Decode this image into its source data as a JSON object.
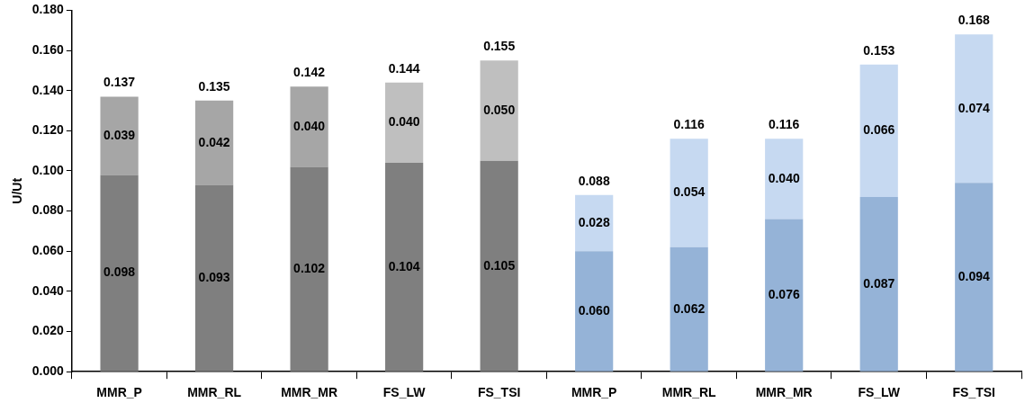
{
  "chart_data": {
    "type": "bar",
    "stacked": true,
    "ylabel": "U/Ut",
    "categories": [
      "MMR_P",
      "MMR_RL",
      "MMR_MR",
      "FS_LW",
      "FS_TSI",
      "MMR_P",
      "MMR_RL",
      "MMR_MR",
      "FS_LW",
      "FS_TSI"
    ],
    "series": [
      {
        "colors": [
          "#7f7f7f",
          "#7f7f7f",
          "#7f7f7f",
          "#7f7f7f",
          "#7f7f7f",
          "#95b3d7",
          "#95b3d7",
          "#95b3d7",
          "#95b3d7",
          "#95b3d7"
        ],
        "values": [
          0.098,
          0.093,
          0.102,
          0.104,
          0.105,
          0.06,
          0.062,
          0.076,
          0.087,
          0.094
        ],
        "value_labels": [
          "0.098",
          "0.093",
          "0.102",
          "0.104",
          "0.105",
          "0.060",
          "0.062",
          "0.076",
          "0.087",
          "0.094"
        ]
      },
      {
        "colors": [
          "#a6a6a6",
          "#a6a6a6",
          "#a6a6a6",
          "#bfbfbf",
          "#bfbfbf",
          "#c6d9f1",
          "#c6d9f1",
          "#c6d9f1",
          "#c6d9f1",
          "#c6d9f1"
        ],
        "values": [
          0.039,
          0.042,
          0.04,
          0.04,
          0.05,
          0.028,
          0.054,
          0.04,
          0.066,
          0.074
        ],
        "value_labels": [
          "0.039",
          "0.042",
          "0.040",
          "0.040",
          "0.050",
          "0.028",
          "0.054",
          "0.040",
          "0.066",
          "0.074"
        ]
      }
    ],
    "totals": [
      "0.137",
      "0.135",
      "0.142",
      "0.144",
      "0.155",
      "0.088",
      "0.116",
      "0.116",
      "0.153",
      "0.168"
    ],
    "ylim": [
      0,
      0.18
    ],
    "yticks": [
      {
        "value": 0,
        "label": "0.000"
      },
      {
        "value": 0.02,
        "label": "0.020"
      },
      {
        "value": 0.04,
        "label": "0.040"
      },
      {
        "value": 0.06,
        "label": "0.060"
      },
      {
        "value": 0.08,
        "label": "0.080"
      },
      {
        "value": 0.1,
        "label": "0.100"
      },
      {
        "value": 0.12,
        "label": "0.120"
      },
      {
        "value": 0.14,
        "label": "0.140"
      },
      {
        "value": 0.16,
        "label": "0.160"
      },
      {
        "value": 0.18,
        "label": "0.180"
      }
    ],
    "grid": false,
    "legend": false
  }
}
